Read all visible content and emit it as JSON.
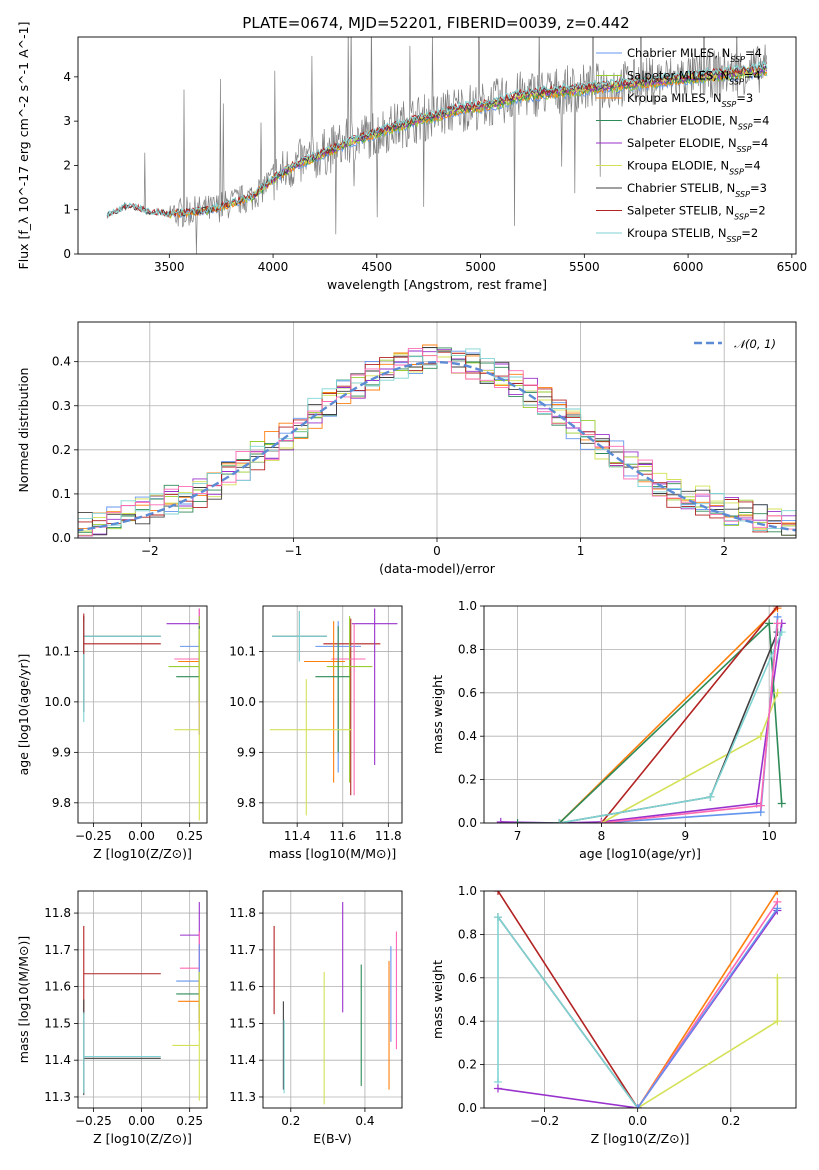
{
  "title": "PLATE=0674, MJD=52201, FIBERID=0039, z=0.442",
  "colors": {
    "Chabrier MILES": "#6495ed",
    "Salpeter MILES": "#9acd32",
    "Kroupa MILES": "#ff7f0e",
    "Chabrier ELODIE": "#2e8b57",
    "Salpeter ELODIE": "#9932cc",
    "Kroupa ELODIE": "#d4e157",
    "Chabrier STELIB": "#404040",
    "Salpeter STELIB": "#b22222",
    "Kroupa STELIB": "#7fd3d3",
    "data": "#808080",
    "gaussian": "#5b8bd4",
    "pink": "#ff69b4"
  },
  "chart_data": [
    {
      "type": "line",
      "name": "spectrum",
      "xlabel": "wavelength [Angstrom, rest frame]",
      "ylabel": "Flux [f_λ 10^-17 erg cm^-2 s^-1 A^-1]",
      "xlim": [
        3060,
        6520
      ],
      "ylim": [
        0,
        4.9
      ],
      "xticks": [
        3500,
        4000,
        4500,
        5000,
        5500,
        6000,
        6500
      ],
      "yticks": [
        0,
        1,
        2,
        3,
        4
      ],
      "legend_position": "top-right",
      "series": [
        {
          "name": "Chabrier MILES, N_SSP=4"
        },
        {
          "name": "Salpeter MILES, N_SSP=4"
        },
        {
          "name": "Kroupa MILES, N_SSP=3"
        },
        {
          "name": "Chabrier ELODIE, N_SSP=4"
        },
        {
          "name": "Salpeter ELODIE, N_SSP=4"
        },
        {
          "name": "Kroupa ELODIE, N_SSP=4"
        },
        {
          "name": "Chabrier STELIB, N_SSP=3"
        },
        {
          "name": "Salpeter STELIB, N_SSP=2"
        },
        {
          "name": "Kroupa STELIB, N_SSP=2"
        }
      ],
      "continuum": {
        "x": [
          3200,
          3300,
          3400,
          3500,
          3700,
          3800,
          3900,
          4000,
          4100,
          4200,
          4300,
          4400,
          4500,
          4600,
          4700,
          4800,
          4900,
          5000,
          5100,
          5200,
          5300,
          5400,
          5500,
          5600,
          5700,
          5800,
          5900,
          6000,
          6100,
          6200,
          6300,
          6380
        ],
        "y": [
          0.85,
          1.1,
          0.95,
          0.9,
          1.0,
          1.15,
          1.3,
          1.7,
          2.0,
          2.2,
          2.4,
          2.6,
          2.75,
          2.9,
          3.05,
          3.15,
          3.3,
          3.35,
          3.45,
          3.6,
          3.65,
          3.7,
          3.75,
          3.8,
          3.85,
          3.9,
          3.95,
          4.0,
          4.05,
          4.1,
          4.15,
          4.2
        ]
      }
    },
    {
      "type": "line",
      "name": "residual-histogram",
      "xlabel": "(data-model)/error",
      "ylabel": "Normed distribution",
      "xlim": [
        -2.5,
        2.5
      ],
      "ylim": [
        0,
        0.49
      ],
      "xticks": [
        -2,
        -1,
        0,
        1,
        2
      ],
      "yticks": [
        0.0,
        0.1,
        0.2,
        0.3,
        0.4
      ],
      "legend": "𝒩(0, 1)",
      "legend_position": "top-right",
      "bin_width": 0.1
    },
    {
      "type": "scatter",
      "name": "age-vs-Z",
      "xlabel": "Z [log10(Z/Z⊙)]",
      "ylabel": "age  [log10(age/yr)]",
      "xlim": [
        -0.33,
        0.34
      ],
      "ylim": [
        9.76,
        10.19
      ],
      "xticks": [
        -0.25,
        0.0,
        0.25
      ],
      "yticks": [
        9.8,
        9.9,
        10.0,
        10.1
      ],
      "points": [
        {
          "series": "Chabrier STELIB",
          "x": -0.3,
          "y": 10.13,
          "xerr": [
            0.0,
            0.4
          ],
          "yerr": [
            0.15,
            0.04
          ]
        },
        {
          "series": "Kroupa STELIB",
          "x": -0.3,
          "y": 10.13,
          "xerr": [
            0.0,
            0.4
          ],
          "yerr": [
            0.17,
            0.03
          ]
        },
        {
          "series": "Salpeter STELIB",
          "x": -0.3,
          "y": 10.115,
          "xerr": [
            0.0,
            0.4
          ],
          "yerr": [
            0.02,
            0.06
          ]
        },
        {
          "series": "Salpeter ELODIE",
          "x": 0.3,
          "y": 10.155,
          "xerr": [
            0.17,
            0.0
          ],
          "yerr": [
            0.22,
            0.03
          ]
        },
        {
          "series": "Chabrier MILES",
          "x": 0.3,
          "y": 10.11,
          "xerr": [
            0.1,
            0.0
          ],
          "yerr": [
            0.1,
            0.05
          ]
        },
        {
          "series": "pink",
          "x": 0.3,
          "y": 10.085,
          "xerr": [
            0.13,
            0.0
          ],
          "yerr": [
            0.1,
            0.1
          ]
        },
        {
          "series": "Kroupa MILES",
          "x": 0.3,
          "y": 10.08,
          "xerr": [
            0.11,
            0.0
          ],
          "yerr": [
            0.08,
            0.06
          ]
        },
        {
          "series": "Salpeter MILES",
          "x": 0.3,
          "y": 10.07,
          "xerr": [
            0.16,
            0.0
          ],
          "yerr": [
            0.06,
            0.1
          ]
        },
        {
          "series": "Chabrier ELODIE",
          "x": 0.3,
          "y": 10.05,
          "xerr": [
            0.12,
            0.0
          ],
          "yerr": [
            0.05,
            0.1
          ]
        },
        {
          "series": "Kroupa ELODIE",
          "x": 0.3,
          "y": 9.945,
          "xerr": [
            0.13,
            0.0
          ],
          "yerr": [
            0.18,
            0.2
          ]
        }
      ]
    },
    {
      "type": "scatter",
      "name": "age-vs-mass",
      "xlabel": "mass [log10(M/M⊙)]",
      "ylabel": "",
      "xlim": [
        11.25,
        11.86
      ],
      "ylim": [
        9.76,
        10.19
      ],
      "xticks": [
        11.4,
        11.6,
        11.8
      ],
      "yticks": [
        9.8,
        9.9,
        10.0,
        10.1
      ],
      "points": [
        {
          "series": "Chabrier STELIB",
          "x": 11.41,
          "y": 10.13,
          "xerr": [
            0.12,
            0.12
          ],
          "yerr": [
            0.05,
            0.05
          ]
        },
        {
          "series": "Kroupa STELIB",
          "x": 11.41,
          "y": 10.13,
          "xerr": [
            0.12,
            0.12
          ],
          "yerr": [
            0.05,
            0.05
          ]
        },
        {
          "series": "Salpeter STELIB",
          "x": 11.635,
          "y": 10.115,
          "xerr": [
            0.12,
            0.13
          ],
          "yerr": [
            0.3,
            0.05
          ]
        },
        {
          "series": "Salpeter ELODIE",
          "x": 11.74,
          "y": 10.155,
          "xerr": [
            0.1,
            0.1
          ],
          "yerr": [
            0.28,
            0.03
          ]
        },
        {
          "series": "Chabrier MILES",
          "x": 11.58,
          "y": 10.11,
          "xerr": [
            0.1,
            0.1
          ],
          "yerr": [
            0.25,
            0.05
          ]
        },
        {
          "series": "pink",
          "x": 11.65,
          "y": 10.085,
          "xerr": [
            0.1,
            0.05
          ],
          "yerr": [
            0.27,
            0.07
          ]
        },
        {
          "series": "Kroupa MILES",
          "x": 11.56,
          "y": 10.08,
          "xerr": [
            0.13,
            0.05
          ],
          "yerr": [
            0.24,
            0.08
          ]
        },
        {
          "series": "Salpeter MILES",
          "x": 11.63,
          "y": 10.07,
          "xerr": [
            0.1,
            0.1
          ],
          "yerr": [
            0.23,
            0.1
          ]
        },
        {
          "series": "Chabrier ELODIE",
          "x": 11.58,
          "y": 10.05,
          "xerr": [
            0.1,
            0.05
          ],
          "yerr": [
            0.15,
            0.1
          ]
        },
        {
          "series": "Kroupa ELODIE",
          "x": 11.44,
          "y": 9.945,
          "xerr": [
            0.16,
            0.2
          ],
          "yerr": [
            0.17,
            0.1
          ]
        }
      ]
    },
    {
      "type": "line",
      "name": "mass-weight-vs-age",
      "xlabel": "age  [log10(age/yr)]",
      "ylabel": "mass weight",
      "xlim": [
        6.6,
        10.32
      ],
      "ylim": [
        0,
        1.0
      ],
      "xticks": [
        7,
        8,
        9,
        10
      ],
      "yticks": [
        0.0,
        0.2,
        0.4,
        0.6,
        0.8,
        1.0
      ],
      "series": [
        {
          "color": "Salpeter ELODIE",
          "x": [
            6.8,
            7.5,
            8.0,
            9.85,
            10.15
          ],
          "y": [
            0.005,
            0.0,
            0.005,
            0.09,
            0.92
          ]
        },
        {
          "color": "Kroupa MILES",
          "x": [
            7.5,
            10.1
          ],
          "y": [
            0.0,
            0.99
          ]
        },
        {
          "color": "Chabrier ELODIE",
          "x": [
            7.0,
            7.5,
            10.0,
            10.15
          ],
          "y": [
            0.0,
            0.0,
            0.92,
            0.09
          ]
        },
        {
          "color": "Salpeter STELIB",
          "x": [
            8.0,
            10.1
          ],
          "y": [
            0.0,
            1.0
          ]
        },
        {
          "color": "Kroupa ELODIE",
          "x": [
            8.0,
            9.9,
            10.1
          ],
          "y": [
            0.0,
            0.4,
            0.6
          ]
        },
        {
          "color": "Chabrier STELIB",
          "x": [
            7.5,
            9.3,
            10.1
          ],
          "y": [
            0.0,
            0.12,
            0.88
          ]
        },
        {
          "color": "Kroupa STELIB",
          "x": [
            7.5,
            9.3,
            10.15
          ],
          "y": [
            0.0,
            0.12,
            0.88
          ]
        },
        {
          "color": "Chabrier MILES",
          "x": [
            8.0,
            9.9,
            10.1
          ],
          "y": [
            0.0,
            0.05,
            0.95
          ]
        },
        {
          "color": "pink",
          "x": [
            8.0,
            9.9,
            10.1
          ],
          "y": [
            0.0,
            0.08,
            0.92
          ]
        }
      ]
    },
    {
      "type": "scatter",
      "name": "mass-vs-Z",
      "xlabel": "Z [log10(Z/Z⊙)]",
      "ylabel": "mass [log10(M/M⊙)]",
      "xlim": [
        -0.33,
        0.34
      ],
      "ylim": [
        11.27,
        11.86
      ],
      "xticks": [
        -0.25,
        0.0,
        0.25
      ],
      "yticks": [
        11.3,
        11.4,
        11.5,
        11.6,
        11.7,
        11.8
      ],
      "points": [
        {
          "series": "Salpeter STELIB",
          "x": -0.3,
          "y": 11.635,
          "xerr": [
            0.0,
            0.4
          ],
          "yerr": [
            0.11,
            0.13
          ]
        },
        {
          "series": "Chabrier STELIB",
          "x": -0.3,
          "y": 11.405,
          "xerr": [
            0.0,
            0.4
          ],
          "yerr": [
            0.1,
            0.16
          ]
        },
        {
          "series": "Kroupa STELIB",
          "x": -0.3,
          "y": 11.41,
          "xerr": [
            0.0,
            0.4
          ],
          "yerr": [
            0.1,
            0.12
          ]
        },
        {
          "series": "Salpeter ELODIE",
          "x": 0.3,
          "y": 11.74,
          "xerr": [
            0.1,
            0.0
          ],
          "yerr": [
            0.2,
            0.09
          ]
        },
        {
          "series": "pink",
          "x": 0.3,
          "y": 11.65,
          "xerr": [
            0.1,
            0.0
          ],
          "yerr": [
            0.15,
            0.1
          ]
        },
        {
          "series": "Chabrier MILES",
          "x": 0.3,
          "y": 11.615,
          "xerr": [
            0.12,
            0.0
          ],
          "yerr": [
            0.1,
            0.1
          ]
        },
        {
          "series": "Chabrier ELODIE",
          "x": 0.3,
          "y": 11.58,
          "xerr": [
            0.12,
            0.0
          ],
          "yerr": [
            0.08,
            0.06
          ]
        },
        {
          "series": "Kroupa MILES",
          "x": 0.3,
          "y": 11.56,
          "xerr": [
            0.11,
            0.0
          ],
          "yerr": [
            0.08,
            0.06
          ]
        },
        {
          "series": "Kroupa ELODIE",
          "x": 0.3,
          "y": 11.44,
          "xerr": [
            0.14,
            0.0
          ],
          "yerr": [
            0.15,
            0.2
          ]
        }
      ]
    },
    {
      "type": "scatter",
      "name": "mass-vs-ebv",
      "xlabel": "E(B-V)",
      "ylabel": "",
      "xlim": [
        0.125,
        0.5
      ],
      "ylim": [
        11.27,
        11.86
      ],
      "xticks": [
        0.2,
        0.4
      ],
      "yticks": [
        11.3,
        11.4,
        11.5,
        11.6,
        11.7,
        11.8
      ],
      "points": [
        {
          "series": "Salpeter STELIB",
          "x": 0.155,
          "y": 11.635,
          "yerr": [
            0.11,
            0.13
          ]
        },
        {
          "series": "Chabrier STELIB",
          "x": 0.18,
          "y": 11.44,
          "yerr": [
            0.12,
            0.12
          ]
        },
        {
          "series": "Kroupa STELIB",
          "x": 0.182,
          "y": 11.41,
          "yerr": [
            0.1,
            0.1
          ]
        },
        {
          "series": "Kroupa ELODIE",
          "x": 0.29,
          "y": 11.46,
          "yerr": [
            0.18,
            0.18
          ]
        },
        {
          "series": "Salpeter ELODIE",
          "x": 0.34,
          "y": 11.68,
          "yerr": [
            0.15,
            0.15
          ]
        },
        {
          "series": "Chabrier ELODIE",
          "x": 0.39,
          "y": 11.5,
          "yerr": [
            0.17,
            0.16
          ]
        },
        {
          "series": "Kroupa MILES",
          "x": 0.465,
          "y": 11.52,
          "yerr": [
            0.2,
            0.15
          ]
        },
        {
          "series": "Chabrier MILES",
          "x": 0.47,
          "y": 11.6,
          "yerr": [
            0.15,
            0.11
          ]
        },
        {
          "series": "pink",
          "x": 0.485,
          "y": 11.59,
          "yerr": [
            0.16,
            0.16
          ]
        }
      ]
    },
    {
      "type": "line",
      "name": "mass-weight-vs-Z",
      "xlabel": "Z [log10(Z/Z⊙)]",
      "ylabel": "mass weight",
      "xlim": [
        -0.33,
        0.34
      ],
      "ylim": [
        0,
        1.0
      ],
      "xticks": [
        -0.2,
        0.0,
        0.2
      ],
      "yticks": [
        0.0,
        0.2,
        0.4,
        0.6,
        0.8,
        1.0
      ],
      "series": [
        {
          "color": "Salpeter STELIB",
          "x": [
            -0.3,
            0.0
          ],
          "y": [
            1.0,
            0.0
          ]
        },
        {
          "color": "Chabrier STELIB",
          "x": [
            -0.3,
            0.0
          ],
          "y": [
            0.88,
            0.0
          ]
        },
        {
          "color": "Kroupa STELIB",
          "x": [
            -0.3,
            -0.3,
            0.0
          ],
          "y": [
            0.12,
            0.88,
            0.0
          ]
        },
        {
          "color": "Salpeter ELODIE",
          "x": [
            -0.3,
            0.0,
            0.3
          ],
          "y": [
            0.09,
            0.0,
            0.91
          ]
        },
        {
          "color": "Kroupa MILES",
          "x": [
            0.0,
            0.3
          ],
          "y": [
            0.0,
            1.0
          ]
        },
        {
          "color": "Kroupa ELODIE",
          "x": [
            0.0,
            0.3,
            0.3
          ],
          "y": [
            0.0,
            0.4,
            0.6
          ]
        },
        {
          "color": "pink",
          "x": [
            0.0,
            0.3
          ],
          "y": [
            0.0,
            0.95
          ]
        },
        {
          "color": "Chabrier MILES",
          "x": [
            0.0,
            0.3
          ],
          "y": [
            0.0,
            0.92
          ]
        }
      ]
    }
  ]
}
